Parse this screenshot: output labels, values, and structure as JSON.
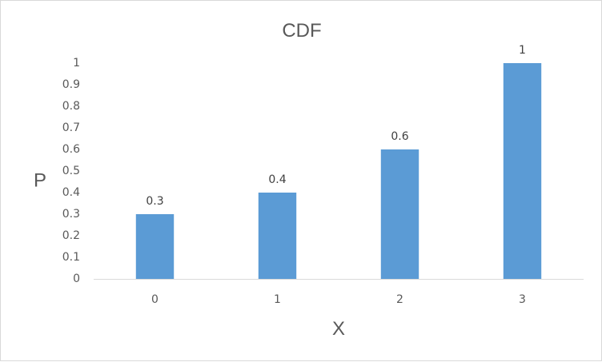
{
  "chart_data": {
    "type": "bar",
    "title": "CDF",
    "xlabel": "X",
    "ylabel": "P",
    "categories": [
      "0",
      "1",
      "2",
      "3"
    ],
    "values": [
      0.3,
      0.4,
      0.6,
      1
    ],
    "data_labels": [
      "0.3",
      "0.4",
      "0.6",
      "1"
    ],
    "ylim": [
      0,
      1
    ],
    "yticks": [
      "0",
      "0.1",
      "0.2",
      "0.3",
      "0.4",
      "0.5",
      "0.6",
      "0.7",
      "0.8",
      "0.9",
      "1"
    ],
    "grid": false,
    "legend": "none",
    "bar_color": "#5b9bd5",
    "axis_color": "#d9d9d9"
  }
}
